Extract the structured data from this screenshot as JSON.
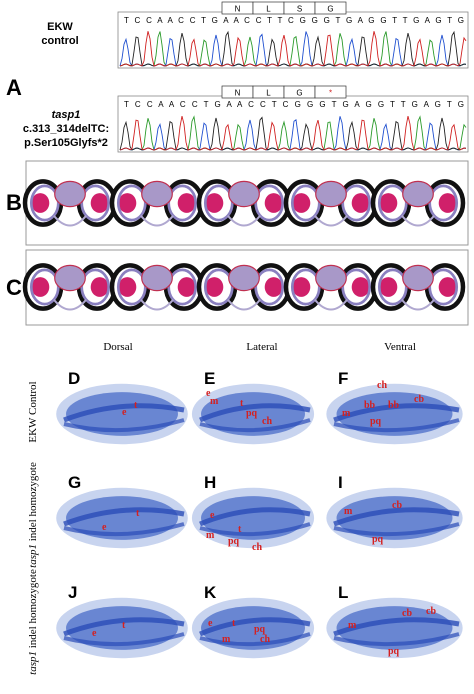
{
  "panel_a": {
    "letter": "A",
    "control": {
      "line1": "EKW",
      "line2": "control",
      "sequence": "T C C A A C C T G A A C C T T C G G G T G A G G T T G A G T G",
      "codons": [
        "N",
        "L",
        "S",
        "G"
      ]
    },
    "mutant": {
      "gene": "tasp1",
      "cdna": "c.313_314delTC:",
      "protein": "p.Ser105Glyfs*2",
      "sequence": "T C C A A C C T G A A C C T C G G G T G A G G T T G A G T G",
      "codons": [
        "N",
        "L",
        "G",
        "*"
      ]
    }
  },
  "panel_b": {
    "letter": "B"
  },
  "panel_c": {
    "letter": "C"
  },
  "columns": [
    "Dorsal",
    "Lateral",
    "Ventral"
  ],
  "rows": [
    {
      "label": "EKW Control"
    },
    {
      "gene": "tasp1",
      "label": " indel homozygote"
    },
    {
      "gene": "tasp1",
      "label": " indel homozygote"
    }
  ],
  "panels": [
    {
      "letter": "D",
      "labels": [
        "e",
        "t"
      ]
    },
    {
      "letter": "E",
      "labels": [
        "e",
        "m",
        "t",
        "pq",
        "ch"
      ]
    },
    {
      "letter": "F",
      "labels": [
        "ch",
        "m",
        "bb",
        "bb",
        "pq",
        "cb"
      ]
    },
    {
      "letter": "G",
      "labels": [
        "e",
        "t"
      ]
    },
    {
      "letter": "H",
      "labels": [
        "e",
        "m",
        "t",
        "pq",
        "ch"
      ]
    },
    {
      "letter": "I",
      "labels": [
        "m",
        "cb",
        "pq"
      ]
    },
    {
      "letter": "J",
      "labels": [
        "e",
        "t"
      ]
    },
    {
      "letter": "K",
      "labels": [
        "e",
        "t",
        "pq",
        "m",
        "ch"
      ]
    },
    {
      "letter": "L",
      "labels": [
        "m",
        "cb",
        "cb",
        "pq"
      ]
    }
  ]
}
